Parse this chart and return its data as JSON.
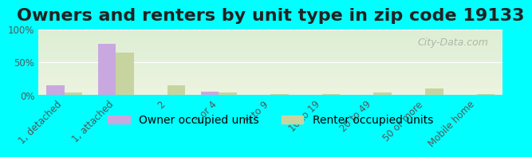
{
  "title": "Owners and renters by unit type in zip code 19133",
  "categories": [
    "1, detached",
    "1, attached",
    "2",
    "3 or 4",
    "5 to 9",
    "10 to 19",
    "20 to 49",
    "50 or more",
    "Mobile home"
  ],
  "owner_values": [
    15,
    78,
    0.5,
    5,
    0.5,
    0.5,
    0.5,
    0.5,
    0.5
  ],
  "renter_values": [
    4,
    65,
    15,
    4,
    2,
    1,
    4,
    10,
    2
  ],
  "owner_color": "#c9a8e0",
  "renter_color": "#c8d4a0",
  "background_color_top": "#e8f5e0",
  "background_color_bottom": "#f5f5e8",
  "outer_bg": "#00ffff",
  "ylim": [
    0,
    100
  ],
  "yticks": [
    0,
    50,
    100
  ],
  "yticklabels": [
    "0%",
    "50%",
    "100%"
  ],
  "bar_width": 0.35,
  "legend_owner": "Owner occupied units",
  "legend_renter": "Renter occupied units",
  "watermark": "City-Data.com",
  "title_fontsize": 16,
  "tick_fontsize": 8.5,
  "legend_fontsize": 10
}
